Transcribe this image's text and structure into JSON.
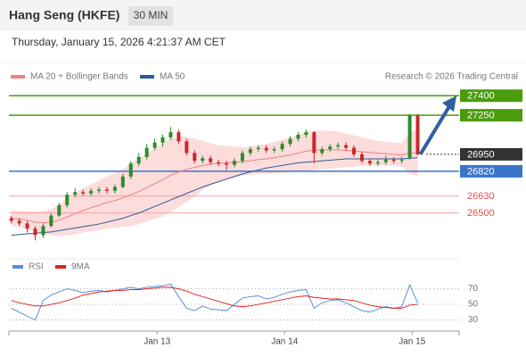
{
  "header": {
    "title": "Hang Seng (HKFE)",
    "interval": "30 MIN",
    "timestamp": "Thursday, January 15, 2026 4:21:37 AM CET",
    "credit": "Research © 2026 Trading Central"
  },
  "chart_data": [
    {
      "type": "candlestick",
      "up_color": "#2e8b2e",
      "down_color": "#c8282d",
      "xlim": [
        -0.3,
        56.2
      ],
      "ylim": [
        26210,
        27470
      ],
      "open": [
        26460,
        26440,
        26420,
        26380,
        26330,
        26400,
        26480,
        26560,
        26640,
        26660,
        26650,
        26670,
        26680,
        26670,
        26700,
        26780,
        26880,
        26930,
        27000,
        27040,
        27080,
        27120,
        27050,
        26960,
        26900,
        26920,
        26890,
        26880,
        26870,
        26900,
        26960,
        26990,
        27000,
        26980,
        26990,
        27030,
        27070,
        27100,
        27120,
        26960,
        26990,
        27010,
        27020,
        27000,
        26950,
        26900,
        26880,
        26890,
        26910,
        26900,
        26920,
        27250
      ],
      "high": [
        26480,
        26460,
        26440,
        26400,
        26420,
        26500,
        26580,
        26660,
        26690,
        26680,
        26690,
        26700,
        26700,
        26720,
        26800,
        26900,
        26960,
        27030,
        27070,
        27100,
        27160,
        27140,
        27070,
        26980,
        26940,
        26940,
        26910,
        26900,
        26920,
        26980,
        27010,
        27020,
        27020,
        27010,
        27050,
        27090,
        27120,
        27140,
        27130,
        27010,
        27030,
        27040,
        27040,
        27020,
        26970,
        26920,
        26910,
        26940,
        26930,
        26930,
        27260,
        27260
      ],
      "low": [
        26420,
        26400,
        26350,
        26290,
        26310,
        26390,
        26470,
        26540,
        26620,
        26630,
        26630,
        26650,
        26650,
        26650,
        26690,
        26760,
        26860,
        26910,
        26980,
        27010,
        27060,
        27030,
        26940,
        26880,
        26880,
        26870,
        26860,
        26830,
        26850,
        26880,
        26940,
        26970,
        26960,
        26960,
        26970,
        27010,
        27050,
        27080,
        26880,
        26940,
        26970,
        26990,
        26980,
        26930,
        26880,
        26860,
        26860,
        26870,
        26880,
        26880,
        26910,
        26940
      ],
      "close": [
        26440,
        26420,
        26380,
        26330,
        26400,
        26480,
        26560,
        26640,
        26660,
        26650,
        26670,
        26680,
        26670,
        26700,
        26780,
        26880,
        26930,
        27000,
        27040,
        27080,
        27120,
        27050,
        26960,
        26900,
        26920,
        26890,
        26880,
        26870,
        26900,
        26960,
        26990,
        27000,
        26980,
        26990,
        27030,
        27070,
        27100,
        27120,
        26960,
        26990,
        27010,
        27020,
        27000,
        26950,
        26900,
        26880,
        26890,
        26910,
        26900,
        26910,
        27250,
        26950
      ],
      "series": [
        {
          "name": "MA 20 + Bollinger Bands",
          "color": "#f08080",
          "band_color": "#fddcdc",
          "values": [
            26460,
            26455,
            26445,
            26430,
            26425,
            26430,
            26445,
            26470,
            26495,
            26520,
            26540,
            26560,
            26580,
            26595,
            26615,
            26640,
            26665,
            26695,
            26725,
            26755,
            26790,
            26815,
            26835,
            26850,
            26865,
            26875,
            26880,
            26885,
            26890,
            26895,
            26900,
            26910,
            26915,
            26925,
            26935,
            26945,
            26960,
            26975,
            26980,
            26985,
            26985,
            26985,
            26980,
            26975,
            26970,
            26965,
            26960,
            26955,
            26950,
            26945,
            26960,
            26960
          ],
          "upper": [
            26520,
            26515,
            26515,
            26510,
            26515,
            26530,
            26565,
            26610,
            26655,
            26690,
            26720,
            26750,
            26780,
            26805,
            26835,
            26880,
            26915,
            26955,
            26995,
            27035,
            27070,
            27085,
            27085,
            27070,
            27055,
            27035,
            27020,
            27015,
            27010,
            27005,
            27010,
            27020,
            27030,
            27045,
            27060,
            27075,
            27100,
            27125,
            27130,
            27135,
            27130,
            27125,
            27110,
            27095,
            27080,
            27065,
            27055,
            27045,
            27040,
            27035,
            27120,
            27140
          ],
          "lower": [
            26400,
            26395,
            26375,
            26350,
            26335,
            26330,
            26325,
            26330,
            26335,
            26350,
            26360,
            26370,
            26380,
            26385,
            26395,
            26400,
            26415,
            26435,
            26455,
            26475,
            26510,
            26545,
            26585,
            26630,
            26675,
            26715,
            26740,
            26755,
            26770,
            26785,
            26790,
            26800,
            26800,
            26805,
            26810,
            26815,
            26820,
            26825,
            26830,
            26835,
            26840,
            26845,
            26850,
            26855,
            26860,
            26865,
            26865,
            26865,
            26860,
            26855,
            26800,
            26780
          ]
        },
        {
          "name": "MA 50",
          "color": "#2c5c9a",
          "values": [
            26330,
            26335,
            26340,
            26345,
            26350,
            26355,
            26365,
            26375,
            26385,
            26395,
            26405,
            26415,
            26430,
            26445,
            26460,
            26480,
            26500,
            26525,
            26550,
            26575,
            26600,
            26625,
            26650,
            26675,
            26700,
            26720,
            26740,
            26760,
            26780,
            26800,
            26815,
            26830,
            26845,
            26855,
            26865,
            26875,
            26885,
            26890,
            26895,
            26900,
            26905,
            26910,
            26915,
            26915,
            26915,
            26915,
            26915,
            26915,
            26915,
            26915,
            26920,
            26925
          ]
        }
      ],
      "levels": [
        {
          "value": 27400,
          "color": "#4b9c0c",
          "label_style": "box"
        },
        {
          "value": 27250,
          "color": "#4b9c0c",
          "label_style": "box"
        },
        {
          "value": 26950,
          "color": "#333333",
          "label_style": "box",
          "line_style": "dotted"
        },
        {
          "value": 26820,
          "color": "#3b75c9",
          "label_style": "box"
        },
        {
          "value": 26630,
          "color": "#e05050",
          "label_style": "text"
        },
        {
          "value": 26500,
          "color": "#e05050",
          "label_style": "text"
        }
      ]
    },
    {
      "type": "line",
      "xlim": [
        -0.3,
        56.2
      ],
      "ylim": [
        10,
        97
      ],
      "yticks": [
        30,
        50,
        70
      ],
      "grid": true,
      "xticks": [
        {
          "value": 18.3,
          "label": "Jan 13"
        },
        {
          "value": 34.3,
          "label": "Jan 14"
        },
        {
          "value": 50.3,
          "label": "Jan 15"
        }
      ],
      "series": [
        {
          "name": "RSI",
          "color": "#5b8fd6",
          "values": [
            45,
            40,
            35,
            30,
            55,
            62,
            66,
            70,
            68,
            65,
            67,
            68,
            66,
            68,
            70,
            72,
            70,
            72,
            73,
            74,
            76,
            60,
            45,
            42,
            48,
            44,
            43,
            42,
            50,
            58,
            60,
            61,
            57,
            59,
            63,
            66,
            68,
            69,
            45,
            52,
            55,
            56,
            52,
            47,
            42,
            40,
            44,
            47,
            45,
            47,
            75,
            52
          ]
        },
        {
          "name": "9MA",
          "color": "#e02020",
          "values": [
            55,
            52,
            50,
            48,
            48,
            50,
            52,
            55,
            58,
            62,
            64,
            66,
            67,
            68,
            68,
            69,
            69,
            70,
            71,
            72,
            72,
            70,
            67,
            63,
            60,
            57,
            54,
            51,
            48,
            47,
            48,
            50,
            52,
            54,
            56,
            58,
            60,
            61,
            59,
            58,
            57,
            57,
            56,
            55,
            52,
            49,
            47,
            46,
            45,
            45,
            49,
            50
          ]
        }
      ]
    }
  ]
}
